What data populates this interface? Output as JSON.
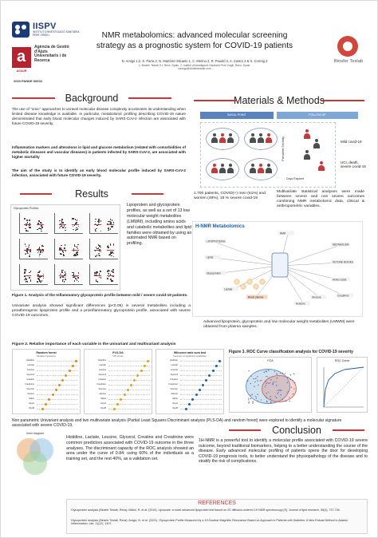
{
  "header": {
    "title_line1": "NMR metabolomics: advanced molecular screening",
    "title_line2": "strategy as a prognostic system for COVID-19 patients",
    "authors": "N. Amigó 1,2, S. Parra 2, N. Martínez Micaelo 1, C. Merino 2, R. Paudel 2, A. Castro 2 & X. Correig 2",
    "affiliation": "1- Biosfer Teslab S.L Reus, Spain. 2- Institut d'Investigació Sanitària Pere Virgili, Reus, Spain.",
    "email": "namigo@biosferteslab.com"
  },
  "logos": {
    "iispv_name": "IISPV",
    "iispv_sub": "INSTITUT D'INVESTIGACIÓ SANITÀRIA PERE VIRGILI",
    "agaur_text": "Agència de Gestió d'Ajuts Universitaris i de Recerca",
    "agaur_tag": "AGAUR",
    "pande_code": "2020 PANDE 00002",
    "biosfer_name": "Biosfer Teslab"
  },
  "sections": {
    "background": "Background",
    "materials": "Materials & Methods",
    "results": "Results",
    "conclusion": "Conclusion",
    "references": "REFERENCES"
  },
  "background": {
    "p1": "The use of \"omic\" approaches to unravel molecular disease complexity accelerates its understanding when limited disease knowledge is available. In particular, metabolomic profiling describing COVID-19 nature demonstrated that early blood molecular changes induced by SARS-CoV-2 infection are associated with future COVID-19 severity.",
    "p2": "Inflammation markers and alterations in lipid and glucose metabolism (related with comorbidities of metabolic diseases and vascular diseases) in patients infected by SARS-CoV-2, are associated with higher mortality",
    "p3": "The aim of the study is to identify an early blood molecular profile induced by SARS-CoV-2 infection, associated with future COVID-19 severity."
  },
  "methods": {
    "bar_left": "BASAL POINT",
    "bar_right": "FOLLOW UP",
    "mild": "Mild covid-19",
    "severe": "UCI, death, severe covid-19",
    "days": "Days Elapsed",
    "stat_col": "Prevalent Severity",
    "cohort": "1.700 patients, COVID(+) men (61%) and women (49%), 15 % severe covid-19",
    "stats": "Multivariate statistical analyses were made between severe and non severe outcomes combining NMR metabolomic data, clinical & anthropometric variables."
  },
  "results": {
    "glyco_title": "Glycoprotein Profiles",
    "intro": "Lipoprotein and glycoprotein profiles, as well as a set of 13 low molecular weight metabolites (LMWM), including amino acids and catabolic metabolites and lipid families were obtained by using an automated NMR based on profiling.",
    "fig1_caption": "Figure 1. Analysis of the Inflammatory glycoprotein profile between mild / severe covid-19 patients.",
    "univariate": "Univariate analysis showed significant differences (p<0.05) in several metabolites including a proatherogenic lipoprotein profile and a proinflammatory glycoprotein profile, associated with severe COVID-19 outcomes.",
    "nmr_title": "H-NMR Metabolomics",
    "nmr_caption": "Advanced lipoprotein, glycoprotein and low molecular weight metabolites (LMWM) were obtained from plasma samples.",
    "fig2_caption": "Figure 2. Relative importance of each variable in the univariant and multivariant analysis",
    "fig3_caption": "Figure 3. ROC Curve classification analysis for COVID-19 severity",
    "bottom_note": "Non parametric Univariant analysis and two multivariate analysis (Partial Least Squares Discriminant analysis (PLS-DA) and random forest) were explored to identify a molecular signature associated with severe COVID-19.",
    "venn_title": "Venn diagram",
    "signature": "Histidine, Lactate, Leucine, Glycerol, Creatine and Creatinine were common predictors associated with COVID-19 outcome in the three analyses. The discriminant capacity of the ROC analysis showed an area under the curve of 0.84; using 60% of the individuals as a training set, and the rest 40%, as a validation set."
  },
  "nmr_nodes": [
    "LIPOPROTEINS",
    "Lipids",
    "Glycoprotein",
    "METABOLISM",
    "KETONE BODIES",
    "Amino acids",
    "Blood plasma",
    "NMR",
    "Glucose",
    "Lactate",
    "Creatinine",
    "Acetone"
  ],
  "fig2_panels": [
    {
      "title": "Random forest",
      "sub": "Variable importance"
    },
    {
      "title": "PLS-DA",
      "sub": "VIP scores"
    },
    {
      "title": "Wilcoxon rank sum test",
      "sub": "Summary of significant metabolites"
    }
  ],
  "fig2_rows": [
    "Histidine",
    "Lactate",
    "Leucine",
    "Glycerol",
    "Creatine",
    "Creatinine",
    "Glucose",
    "Alanine",
    "Valine",
    "GlycA",
    "GlycB"
  ],
  "roc": {
    "left_title": "PCA",
    "right_title": "ROC Curve"
  },
  "conclusion": "1H-NMR is a powerful tool to identify a molecular profile associated with COVID-19 severe outcome, beyond traditional biomarkers, helping to a better understanding the course of the disease. Early advanced molecular profiling of patients opens the door for developing COVID-19 prognosis tools, to better understand the physiopathology of the disease and to stratify the risk of complications.",
  "references": {
    "r1": "Glycoprotein analysis (Biosfer Teslab, Reus): Mallol, R. et al. (2015). Liposcale: a novel advanced lipoprotein test based on 2D diffusion-ordered 1H NMR spectroscopy [S]. Journal of lipid research, 56(3), 737-746.",
    "r2": "Glycoprotein analysis (Biosfer Teslab, Reus): Amigó, N. et al. (2021). Glycoprotein Profile Measured by a 1H-Nuclear Magnetic Resonance Based on Approach in Patients with Diabetes: A New Robust Method to Assess Inflammation. Life, 11(12), 1407."
  },
  "colors": {
    "accent": "#c23a3a",
    "blue": "#1f5fa8",
    "orange": "#e08a1e"
  }
}
